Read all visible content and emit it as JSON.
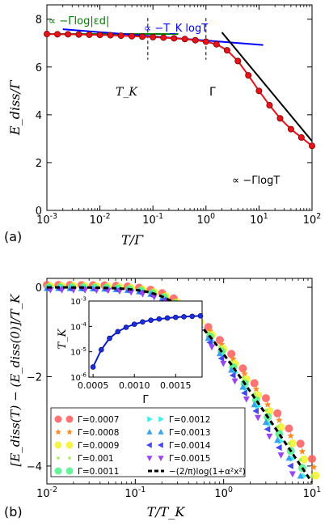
{
  "chart_data": [
    {
      "panel_label": "(a)",
      "type": "line",
      "xlabel": "T/Γ",
      "ylabel": "E_diss/Γ",
      "xscale": "log",
      "xlim": [
        0.001,
        100
      ],
      "ylim": [
        0,
        8.6
      ],
      "xticks": [
        0.001,
        0.01,
        0.1,
        1,
        10,
        100
      ],
      "xtick_labels": [
        "10-3",
        "10-2",
        "10-1",
        "100",
        "101",
        "102"
      ],
      "yticks": [
        0,
        2,
        4,
        6,
        8
      ],
      "ytick_labels": [
        "0",
        "2",
        "4",
        "6",
        "8"
      ],
      "grid": false,
      "annotations": {
        "green": "∝ −Γlog|εd|",
        "blue": "∝ −T_K logT",
        "black": "∝ −ΓlogT",
        "tk_label": "T_K",
        "gamma_label": "Γ"
      },
      "vlines": [
        0.08,
        1.0
      ],
      "data_series": {
        "name": "E_diss/Γ",
        "color": "#e8131a",
        "x": [
          0.001,
          0.00158,
          0.0025,
          0.004,
          0.0063,
          0.01,
          0.0158,
          0.025,
          0.04,
          0.063,
          0.1,
          0.158,
          0.25,
          0.4,
          0.63,
          1.0,
          1.58,
          2.5,
          4.0,
          6.3,
          10,
          15.8,
          25,
          40,
          63,
          100
        ],
        "y": [
          7.38,
          7.37,
          7.37,
          7.36,
          7.35,
          7.34,
          7.33,
          7.31,
          7.29,
          7.27,
          7.25,
          7.23,
          7.2,
          7.17,
          7.12,
          7.06,
          6.95,
          6.7,
          6.25,
          5.65,
          5.0,
          4.4,
          3.85,
          3.4,
          3.05,
          2.7
        ]
      },
      "fits": [
        {
          "color": "#008000",
          "x": [
            0.001,
            0.3
          ],
          "y": [
            7.38,
            7.38
          ]
        },
        {
          "color": "#0000ff",
          "x": [
            0.002,
            12
          ],
          "y": [
            7.58,
            6.92
          ]
        },
        {
          "color": "#000000",
          "x": [
            2,
            100
          ],
          "y": [
            7.45,
            2.9
          ]
        }
      ]
    },
    {
      "panel_label": "(b)",
      "type": "scatter",
      "xlabel": "T/T_K",
      "ylabel": "[E_diss(T) − (E_diss(0)]/T_K",
      "xscale": "log",
      "xlim": [
        0.01,
        10
      ],
      "ylim": [
        -4.4,
        0.2
      ],
      "xticks": [
        0.01,
        0.1,
        1,
        10
      ],
      "xtick_labels": [
        "10-2",
        "10-1",
        "100",
        "101"
      ],
      "yticks": [
        0,
        -2,
        -4
      ],
      "ytick_labels": [
        "0",
        "−2",
        "−4"
      ],
      "legend_location": "lower-left",
      "series": [
        {
          "name": "Γ=0.0007",
          "marker": "circle",
          "color": "#ff5a5a"
        },
        {
          "name": "Γ=0.0008",
          "marker": "star",
          "color": "#ff8c28"
        },
        {
          "name": "Γ=0.0009",
          "marker": "circle",
          "color": "#f2f22a"
        },
        {
          "name": "Γ=0.001",
          "marker": "dot",
          "color": "#a8f05a"
        },
        {
          "name": "Γ=0.0011",
          "marker": "circle",
          "color": "#4cf08c"
        },
        {
          "name": "Γ=0.0012",
          "marker": "triangle-right",
          "color": "#3ff0e8"
        },
        {
          "name": "Γ=0.0013",
          "marker": "triangle-up",
          "color": "#3aa0f0"
        },
        {
          "name": "Γ=0.0014",
          "marker": "triangle-left",
          "color": "#4646f0"
        },
        {
          "name": "Γ=0.0015",
          "marker": "triangle-down",
          "color": "#9a46f0"
        },
        {
          "name": "−(2/π)log(1+α²x²)",
          "marker": "dashed-line",
          "color": "#000000"
        }
      ],
      "inset": {
        "xlabel": "Γ",
        "ylabel": "T_K",
        "yscale": "log",
        "xlim": [
          0.00045,
          0.00182
        ],
        "ylim": [
          1e-06,
          0.001
        ],
        "xticks": [
          0.0005,
          0.001,
          0.0015
        ],
        "xtick_labels": [
          "0.0005",
          "0.0010",
          "0.0015"
        ],
        "ytick_labels": [
          "10-6",
          "10-5",
          "10-4",
          "10-3"
        ],
        "x": [
          0.0005,
          0.0006,
          0.0007,
          0.0008,
          0.0009,
          0.001,
          0.0011,
          0.0012,
          0.0013,
          0.0014,
          0.0015,
          0.0016,
          0.0017,
          0.0018
        ],
        "y": [
          2.5e-06,
          1.2e-05,
          3.4e-05,
          6.2e-05,
          9.2e-05,
          0.000122,
          0.00015,
          0.000175,
          0.000196,
          0.000214,
          0.000228,
          0.00024,
          0.00025,
          0.00026
        ]
      }
    }
  ]
}
